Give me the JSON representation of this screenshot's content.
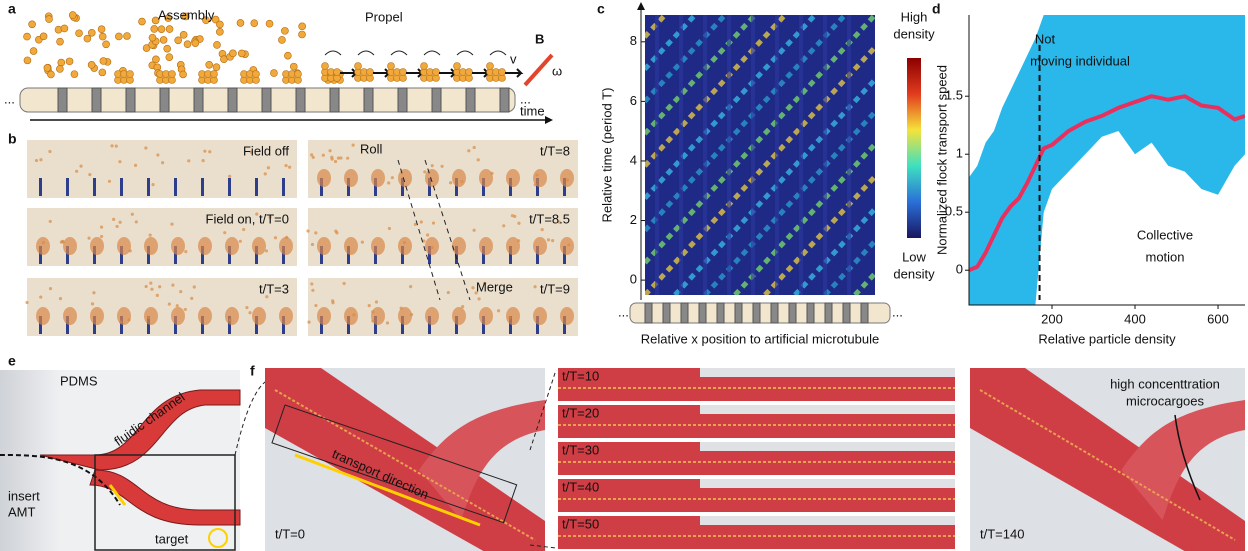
{
  "panels": {
    "a": {
      "label": "a",
      "assembly": "Assembly",
      "propel": "Propel",
      "v": "v",
      "B": "B",
      "omega": "ω",
      "time": "time",
      "ellipsis_left": "...",
      "ellipsis_right": "..."
    },
    "b": {
      "label": "b",
      "frames": [
        "Field off",
        "Field on, t/T=0",
        "t/T=3",
        "t/T=8",
        "t/T=8.5",
        "t/T=9"
      ],
      "roll": "Roll",
      "merge": "Merge"
    },
    "c": {
      "label": "c",
      "ylabel": "Relative time (period T)",
      "xlabel": "Relative x position to artificial microtubule",
      "ylim": [
        -0.5,
        8.9
      ],
      "yticks": [
        0,
        2,
        4,
        6,
        8
      ],
      "colorbar_high": [
        "High",
        "density"
      ],
      "colorbar_low": [
        "Low",
        "density"
      ],
      "ellipsis_left": "...",
      "ellipsis_right": "..."
    },
    "e": {
      "label": "e",
      "pdms": "PDMS",
      "channel": "fluidic channel",
      "insert": [
        "insert",
        "AMT"
      ],
      "target": "target"
    },
    "f": {
      "label": "f",
      "start": "t/T=0",
      "direction": "transport direction",
      "frames": [
        "t/T=10",
        "t/T=20",
        "t/T=30",
        "t/T=40",
        "t/T=50"
      ],
      "end": "t/T=140",
      "note": [
        "high concenttration",
        "microcargoes"
      ]
    }
  },
  "chart_data": {
    "type": "line",
    "panel_label": "d",
    "xlabel": "Relative particle density",
    "ylabel": "Normalized flock transport speed",
    "x": [
      0,
      20,
      40,
      60,
      80,
      100,
      120,
      140,
      160,
      180,
      200,
      240,
      280,
      320,
      360,
      400,
      440,
      480,
      520,
      560,
      600,
      640,
      665
    ],
    "series": [
      {
        "color": "#e8305e",
        "values": [
          0.0,
          0.03,
          0.15,
          0.3,
          0.45,
          0.55,
          0.62,
          0.75,
          0.9,
          1.05,
          1.08,
          1.2,
          1.28,
          1.33,
          1.4,
          1.45,
          1.5,
          1.47,
          1.5,
          1.42,
          1.4,
          1.3,
          1.33
        ]
      }
    ],
    "band": {
      "color": "#2ab8ea",
      "upper": [
        0.8,
        0.9,
        1.1,
        1.2,
        1.4,
        1.55,
        1.7,
        1.85,
        2.0,
        2.2,
        2.2,
        2.2,
        2.2,
        2.2,
        2.2,
        2.2,
        2.2,
        2.2,
        2.2,
        2.2,
        2.2,
        2.2,
        2.2
      ],
      "lower": [
        -0.3,
        -0.3,
        -0.3,
        -0.3,
        -0.3,
        -0.3,
        -0.3,
        -0.3,
        -0.3,
        0.5,
        0.7,
        0.85,
        1.0,
        1.15,
        1.2,
        1.0,
        1.1,
        0.9,
        0.85,
        0.7,
        0.65,
        0.9,
        1.0
      ]
    },
    "vline": 170,
    "annotation_left": [
      "Not",
      "moving individual"
    ],
    "annotation_right": [
      "Collective",
      "motion"
    ],
    "xlim": [
      0,
      665
    ],
    "xticks": [
      200,
      400,
      600
    ],
    "ylim": [
      -0.3,
      2.2
    ],
    "yticks": [
      0,
      0.5,
      1,
      1.5
    ]
  }
}
